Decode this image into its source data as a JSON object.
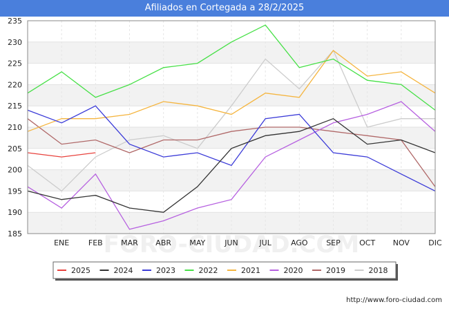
{
  "title": "Afiliados en Cortegada a 28/2/2025",
  "source": "http://www.foro-ciudad.com",
  "watermark": "FORO-CIUDAD.COM",
  "chart_data": {
    "type": "line",
    "title": "Afiliados en Cortegada a 28/2/2025",
    "xlabel": "",
    "ylabel": "",
    "categories": [
      "DIC",
      "ENE",
      "FEB",
      "MAR",
      "ABR",
      "MAY",
      "JUN",
      "JUL",
      "AGO",
      "SEP",
      "OCT",
      "NOV",
      "DIC"
    ],
    "x_tick_labels": [
      "ENE",
      "FEB",
      "MAR",
      "ABR",
      "MAY",
      "JUN",
      "JUL",
      "AGO",
      "SEP",
      "OCT",
      "NOV",
      "DIC"
    ],
    "y_ticks": [
      185,
      190,
      195,
      200,
      205,
      210,
      215,
      220,
      225,
      230,
      235
    ],
    "ylim": [
      185,
      235
    ],
    "grid": true,
    "legend_position": "bottom",
    "series": [
      {
        "name": "2025",
        "color": "#e8413c",
        "values": [
          204,
          203,
          204,
          null,
          null,
          null,
          null,
          null,
          null,
          null,
          null,
          null,
          null
        ]
      },
      {
        "name": "2024",
        "color": "#333333",
        "values": [
          195,
          193,
          194,
          191,
          190,
          196,
          205,
          208,
          209,
          212,
          206,
          207,
          204
        ]
      },
      {
        "name": "2023",
        "color": "#3b3bd8",
        "values": [
          214,
          211,
          215,
          206,
          203,
          204,
          201,
          212,
          213,
          204,
          203,
          199,
          195
        ]
      },
      {
        "name": "2022",
        "color": "#46e046",
        "values": [
          218,
          223,
          217,
          220,
          224,
          225,
          230,
          234,
          224,
          226,
          221,
          220,
          214
        ]
      },
      {
        "name": "2021",
        "color": "#f5b53f",
        "values": [
          209,
          212,
          212,
          213,
          216,
          215,
          213,
          218,
          217,
          228,
          222,
          223,
          218
        ]
      },
      {
        "name": "2020",
        "color": "#b660e0",
        "values": [
          196,
          191,
          199,
          186,
          188,
          191,
          193,
          203,
          207,
          211,
          213,
          216,
          209
        ]
      },
      {
        "name": "2019",
        "color": "#b06868",
        "values": [
          212,
          206,
          207,
          204,
          207,
          207,
          209,
          210,
          210,
          209,
          208,
          207,
          196
        ]
      },
      {
        "name": "2018",
        "color": "#cccccc",
        "values": [
          201,
          195,
          203,
          207,
          208,
          205,
          215,
          226,
          219,
          228,
          210,
          212,
          212
        ]
      }
    ]
  }
}
